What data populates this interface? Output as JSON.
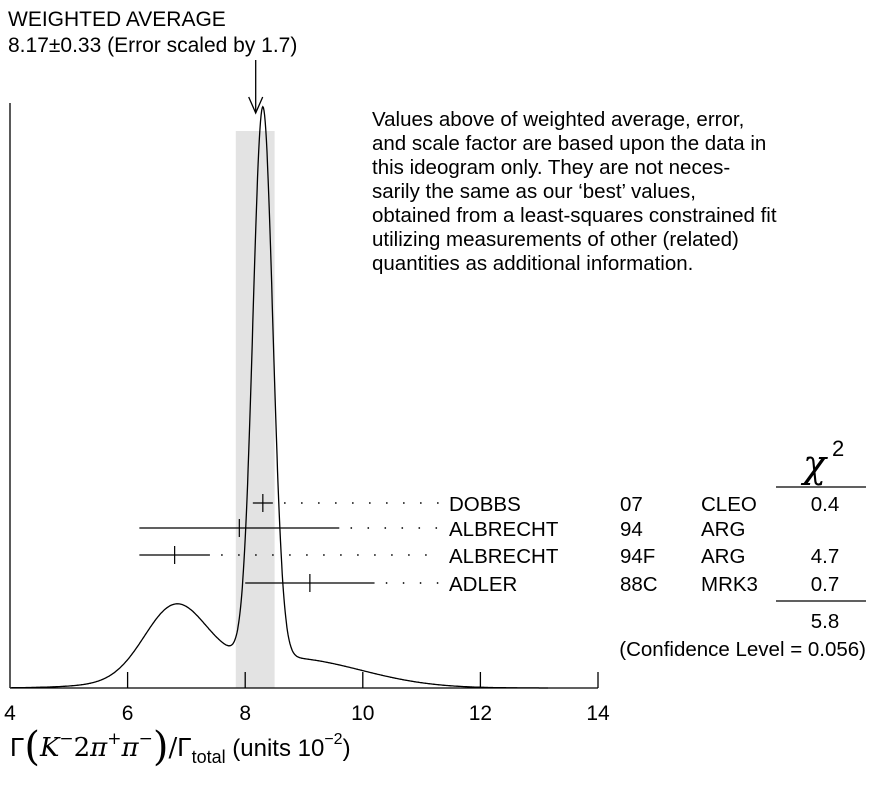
{
  "weighted_average": {
    "label": "WEIGHTED AVERAGE",
    "value_line": "8.17±0.33 (Error scaled by 1.7)"
  },
  "note_lines": [
    "Values above of weighted average, error,",
    "and scale factor are based upon the data in",
    "this ideogram only.  They are not neces-",
    "sarily the same as our ‘best’ values,",
    "obtained from a least-squares constrained fit",
    "utilizing measurements of other (related)",
    "quantities as additional information."
  ],
  "chi2_header": "χ",
  "chi2_superscript": "2",
  "chi2_total": "5.8",
  "confidence_level": "(Confidence Level = 0.056)",
  "xlabel": {
    "gamma": "Γ",
    "paren_open": "(",
    "k": "K",
    "k_sup": "−",
    "two": "2",
    "pi1": "π",
    "pi1_sup": "+",
    "pi2": "π",
    "pi2_sup": "−",
    "paren_close": ")",
    "slash": "/",
    "gamma2": "Γ",
    "total_sub": "total",
    "units": " (units 10",
    "units_sup": "−2",
    "units_close": ")"
  },
  "chart_data": {
    "type": "ideogram",
    "xlim": [
      4,
      14
    ],
    "xticks": [
      4,
      6,
      8,
      10,
      12,
      14
    ],
    "weighted_average": {
      "value": 8.17,
      "error": 0.33,
      "scale_factor": 1.7
    },
    "band": [
      7.84,
      8.5
    ],
    "measurements": [
      {
        "author": "DOBBS",
        "year": "07",
        "experiment": "CLEO",
        "chi2": "0.4",
        "value": 8.3,
        "error": 0.3,
        "show_error": false
      },
      {
        "author": "ALBRECHT",
        "year": "94",
        "experiment": "ARG",
        "chi2": "",
        "value": 7.9,
        "error": 1.7,
        "show_error": true
      },
      {
        "author": "ALBRECHT",
        "year": "94F",
        "experiment": "ARG",
        "chi2": "4.7",
        "value": 6.8,
        "error": 0.6,
        "show_error": true
      },
      {
        "author": "ADLER",
        "year": "88C",
        "experiment": "MRK3",
        "chi2": "0.7",
        "value": 9.1,
        "error": 1.1,
        "show_error": true
      }
    ],
    "curve_peak_x": 8.35,
    "secondary_bump_x": 6.85
  }
}
